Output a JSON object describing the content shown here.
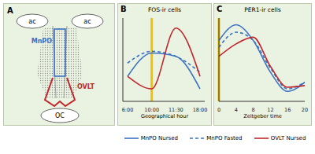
{
  "diagram": {
    "panel": "A",
    "commissures": [
      "ac",
      "ac"
    ],
    "regions": [
      {
        "name": "MnPO",
        "color": "#3b73c4"
      },
      {
        "name": "OVLT",
        "color": "#c0272d"
      }
    ],
    "chiasm": "OC"
  },
  "chart_data": [
    {
      "type": "line",
      "panel": "B",
      "title": "FOS-ir cells",
      "x_label": "Geographical hour",
      "categories": [
        "6:00",
        "10:00",
        "11:30",
        "18:00"
      ],
      "reference_line": "10:00",
      "ylim": [
        0,
        100
      ],
      "tick_labels": "x",
      "legend": "bottom",
      "series": [
        {
          "name": "MnPO Nursed",
          "color": "#3b73c4",
          "line_style": "solid",
          "values": [
            30,
            58,
            54,
            15
          ]
        },
        {
          "name": "MnPO Fasted",
          "color": "#3b73c4",
          "line_style": "dashed",
          "values": [
            46,
            60,
            54,
            35
          ]
        },
        {
          "name": "OVLT Nursed",
          "color": "#c0272d",
          "line_style": "solid",
          "values": [
            30,
            15,
            88,
            30
          ]
        }
      ]
    },
    {
      "type": "line",
      "panel": "C",
      "title": "PER1-ir cells",
      "x_label": "Zeitgeber time",
      "x": [
        0,
        4,
        8,
        12,
        16,
        20
      ],
      "xlim": [
        0,
        20
      ],
      "xticks": [
        0,
        4,
        8,
        12,
        16,
        20
      ],
      "reference_line": 0,
      "ylim": [
        0,
        100
      ],
      "tick_labels": "x",
      "legend": "bottom",
      "series": [
        {
          "name": "MnPO Nursed",
          "color": "#3b73c4",
          "line_style": "solid",
          "values": [
            73,
            92,
            73,
            35,
            12,
            23
          ]
        },
        {
          "name": "MnPO Fasted",
          "color": "#3b73c4",
          "line_style": "dashed",
          "values": [
            65,
            83,
            73,
            40,
            15,
            23
          ]
        },
        {
          "name": "OVLT Nursed",
          "color": "#c0272d",
          "line_style": "solid",
          "values": [
            54,
            69,
            77,
            42,
            17,
            19
          ]
        }
      ]
    }
  ]
}
